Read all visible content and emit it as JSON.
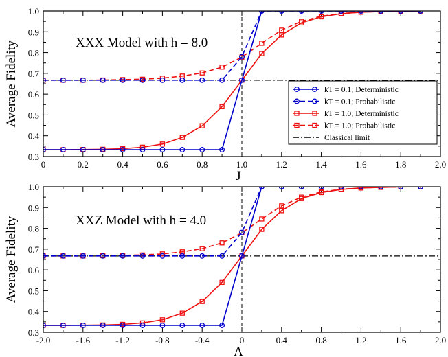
{
  "chart_data": [
    {
      "type": "line",
      "annotation": "XXX Model with h = 8.0",
      "xlabel": "J",
      "ylabel": "Average Fidelity",
      "xlim": [
        0,
        2.0
      ],
      "ylim": [
        0.3,
        1.0
      ],
      "xticks": [
        "0",
        "0.2",
        "0.4",
        "0.6",
        "0.8",
        "1.0",
        "1.2",
        "1.4",
        "1.6",
        "1.8",
        "2.0"
      ],
      "yticks": [
        "0.3",
        "0.4",
        "0.5",
        "0.6",
        "0.7",
        "0.8",
        "0.9",
        "1.0"
      ],
      "legend": {
        "position": "right"
      },
      "series": [
        {
          "name": "kT = 0.1; Deterministic",
          "color": "#0000cc",
          "dash": "solid",
          "marker": "circle",
          "x": [
            0.0,
            0.1,
            0.2,
            0.3,
            0.4,
            0.5,
            0.6,
            0.7,
            0.8,
            0.9,
            1.0,
            1.1,
            1.2,
            1.3,
            1.4,
            1.5,
            1.6,
            1.7,
            1.8,
            1.9
          ],
          "y": [
            0.333,
            0.333,
            0.333,
            0.333,
            0.333,
            0.333,
            0.333,
            0.333,
            0.333,
            0.333,
            0.667,
            1.0,
            1.0,
            1.0,
            1.0,
            1.0,
            1.0,
            1.0,
            1.0,
            1.0
          ]
        },
        {
          "name": "kT = 0.1; Probabilistic",
          "color": "#0000cc",
          "dash": "dashed",
          "marker": "circle",
          "x": [
            0.0,
            0.1,
            0.2,
            0.3,
            0.4,
            0.5,
            0.6,
            0.7,
            0.8,
            0.9,
            1.0,
            1.1,
            1.2,
            1.3,
            1.4,
            1.5,
            1.6,
            1.7,
            1.8,
            1.9
          ],
          "y": [
            0.667,
            0.667,
            0.667,
            0.667,
            0.667,
            0.667,
            0.667,
            0.667,
            0.667,
            0.667,
            0.78,
            1.0,
            1.0,
            1.0,
            1.0,
            1.0,
            1.0,
            1.0,
            1.0,
            1.0
          ]
        },
        {
          "name": "kT = 1.0; Deterministic",
          "color": "#ee1111",
          "dash": "solid",
          "marker": "square",
          "x": [
            0.0,
            0.1,
            0.2,
            0.3,
            0.4,
            0.5,
            0.6,
            0.7,
            0.8,
            0.9,
            1.0,
            1.1,
            1.2,
            1.3,
            1.4,
            1.5,
            1.6,
            1.7,
            1.8,
            1.9
          ],
          "y": [
            0.333,
            0.333,
            0.334,
            0.335,
            0.338,
            0.345,
            0.36,
            0.392,
            0.448,
            0.54,
            0.667,
            0.795,
            0.885,
            0.943,
            0.972,
            0.987,
            0.994,
            0.997,
            0.999,
            1.0
          ]
        },
        {
          "name": "kT = 1.0; Probabilistic",
          "color": "#ee1111",
          "dash": "dashed",
          "marker": "square",
          "x": [
            0.0,
            0.1,
            0.2,
            0.3,
            0.4,
            0.5,
            0.6,
            0.7,
            0.8,
            0.9,
            1.0,
            1.1,
            1.2,
            1.3,
            1.4,
            1.5,
            1.6,
            1.7,
            1.8,
            1.9
          ],
          "y": [
            0.667,
            0.667,
            0.667,
            0.668,
            0.67,
            0.672,
            0.677,
            0.687,
            0.702,
            0.73,
            0.778,
            0.845,
            0.908,
            0.95,
            0.975,
            0.988,
            0.994,
            0.997,
            0.999,
            1.0
          ]
        },
        {
          "name": "Classical limit",
          "color": "#000000",
          "dash": "dashdot",
          "marker": "none",
          "x": [
            0.0,
            2.0
          ],
          "y": [
            0.667,
            0.667
          ]
        }
      ],
      "vline": 1.0
    },
    {
      "type": "line",
      "annotation": "XXZ Model with h = 4.0",
      "xlabel": "Λ",
      "ylabel": "Average Fidelity",
      "xlim": [
        -2.0,
        2.0
      ],
      "ylim": [
        0.3,
        1.0
      ],
      "xticks": [
        "-2.0",
        "-1.6",
        "-1.2",
        "-0.8",
        "-0.4",
        "0",
        "0.4",
        "0.8",
        "1.2",
        "1.6",
        "2.0"
      ],
      "yticks": [
        "0.3",
        "0.4",
        "0.5",
        "0.6",
        "0.7",
        "0.8",
        "0.9",
        "1.0"
      ],
      "series": [
        {
          "name": "kT = 0.1; Deterministic",
          "color": "#0000cc",
          "dash": "solid",
          "marker": "circle",
          "x": [
            -2.0,
            -1.8,
            -1.6,
            -1.4,
            -1.2,
            -1.0,
            -0.8,
            -0.6,
            -0.4,
            -0.2,
            0.0,
            0.2,
            0.4,
            0.6,
            0.8,
            1.0,
            1.2,
            1.4,
            1.6,
            1.8
          ],
          "y": [
            0.333,
            0.333,
            0.333,
            0.333,
            0.333,
            0.333,
            0.333,
            0.333,
            0.333,
            0.333,
            0.667,
            1.0,
            1.0,
            1.0,
            1.0,
            1.0,
            1.0,
            1.0,
            1.0,
            1.0
          ]
        },
        {
          "name": "kT = 0.1; Probabilistic",
          "color": "#0000cc",
          "dash": "dashed",
          "marker": "circle",
          "x": [
            -2.0,
            -1.8,
            -1.6,
            -1.4,
            -1.2,
            -1.0,
            -0.8,
            -0.6,
            -0.4,
            -0.2,
            0.0,
            0.2,
            0.4,
            0.6,
            0.8,
            1.0,
            1.2,
            1.4,
            1.6,
            1.8
          ],
          "y": [
            0.667,
            0.667,
            0.667,
            0.667,
            0.667,
            0.667,
            0.667,
            0.667,
            0.667,
            0.667,
            0.78,
            1.0,
            1.0,
            1.0,
            1.0,
            1.0,
            1.0,
            1.0,
            1.0,
            1.0
          ]
        },
        {
          "name": "kT = 1.0; Deterministic",
          "color": "#ee1111",
          "dash": "solid",
          "marker": "square",
          "x": [
            -2.0,
            -1.8,
            -1.6,
            -1.4,
            -1.2,
            -1.0,
            -0.8,
            -0.6,
            -0.4,
            -0.2,
            0.0,
            0.2,
            0.4,
            0.6,
            0.8,
            1.0,
            1.2,
            1.4,
            1.6,
            1.8
          ],
          "y": [
            0.333,
            0.333,
            0.334,
            0.335,
            0.338,
            0.345,
            0.36,
            0.392,
            0.448,
            0.54,
            0.667,
            0.795,
            0.885,
            0.943,
            0.972,
            0.987,
            0.994,
            0.997,
            0.999,
            1.0
          ]
        },
        {
          "name": "kT = 1.0; Probabilistic",
          "color": "#ee1111",
          "dash": "dashed",
          "marker": "square",
          "x": [
            -2.0,
            -1.8,
            -1.6,
            -1.4,
            -1.2,
            -1.0,
            -0.8,
            -0.6,
            -0.4,
            -0.2,
            0.0,
            0.2,
            0.4,
            0.6,
            0.8,
            1.0,
            1.2,
            1.4,
            1.6,
            1.8
          ],
          "y": [
            0.667,
            0.667,
            0.667,
            0.668,
            0.67,
            0.672,
            0.677,
            0.687,
            0.702,
            0.73,
            0.778,
            0.845,
            0.908,
            0.95,
            0.975,
            0.988,
            0.994,
            0.997,
            0.999,
            1.0
          ]
        },
        {
          "name": "Classical limit",
          "color": "#000000",
          "dash": "dashdot",
          "marker": "none",
          "x": [
            -2.0,
            2.0
          ],
          "y": [
            0.667,
            0.667
          ]
        }
      ],
      "vline": 0.0
    }
  ]
}
